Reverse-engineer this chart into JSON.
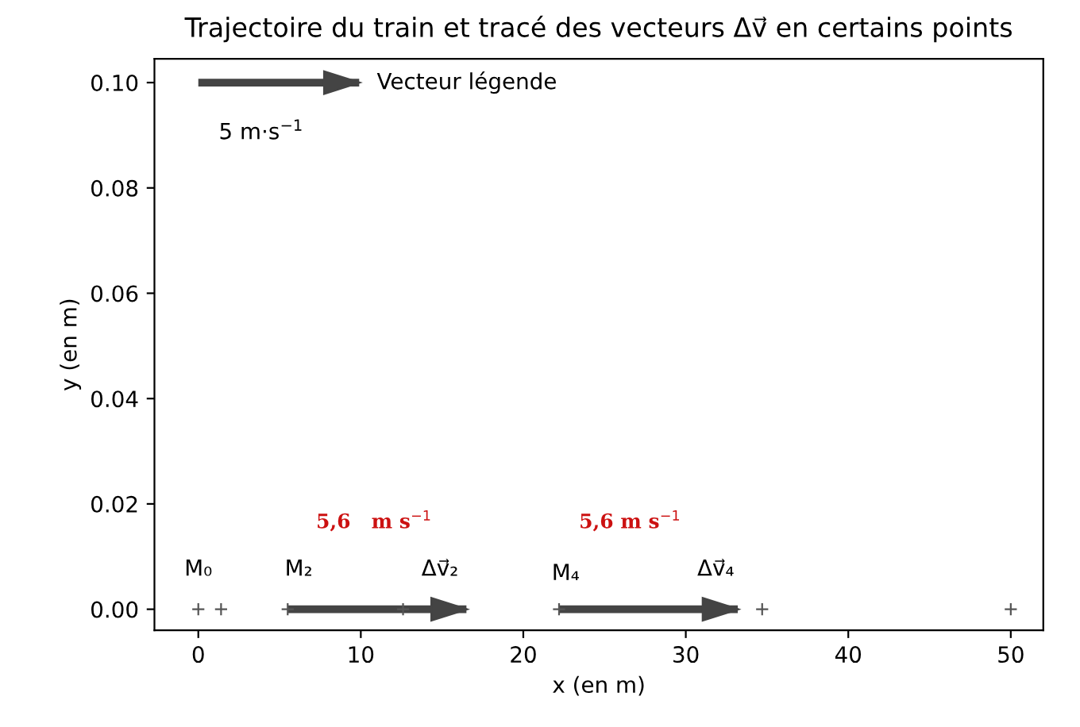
{
  "chart_data": {
    "type": "scatter",
    "title": "Trajectoire du train et tracé des vecteurs Δv⃗ en certains points",
    "xlabel": "x (en m)",
    "ylabel": "y (en m)",
    "series": [
      {
        "color": "#555555",
        "marker": "cross",
        "x": [
          0,
          1.4,
          5.5,
          12.6,
          22.2,
          34.7,
          50
        ],
        "values": [
          0,
          0,
          0,
          0,
          0,
          0,
          0
        ]
      },
      {
        "type": "line",
        "color": "#444444",
        "x": [
          5.5,
          16.5
        ],
        "values": [
          0,
          0
        ]
      },
      {
        "type": "line",
        "color": "#444444",
        "x": [
          22.2,
          33.2
        ],
        "values": [
          0,
          0
        ]
      },
      {
        "type": "line",
        "color": "#444444",
        "x": [
          0,
          9.9
        ],
        "values": [
          0.1,
          0.1
        ]
      }
    ],
    "annotations": [
      {
        "text": "M₀",
        "x": 0,
        "y": 0
      },
      {
        "text": "M₂",
        "x": 5.5,
        "y": 0
      },
      {
        "text": "Δv⃗₂",
        "x": 16.5,
        "y": 0
      },
      {
        "text": "M₄",
        "x": 22.2,
        "y": 0
      },
      {
        "text": "Δv⃗₄",
        "x": 33.2,
        "y": 0
      },
      "5,6   m s$^{−1}$",
      "5,6 m s$^{−1}$",
      "5 m·s$^{−1}$",
      {
        "text": "Vecteur légende",
        "x": 9.9,
        "y": 0.1
      }
    ],
    "xlim": [
      -2.7,
      52
    ],
    "ylim": [
      -0.004,
      0.1045
    ],
    "xticks": [
      0,
      10,
      20,
      30,
      40,
      50
    ],
    "yticks": [
      {
        "value": 0,
        "label": "0.00"
      },
      {
        "value": 0.02,
        "label": "0.02"
      },
      {
        "value": 0.04,
        "label": "0.04"
      },
      {
        "value": 0.06,
        "label": "0.06"
      },
      {
        "value": 0.08,
        "label": "0.08"
      },
      {
        "value": 0.1,
        "label": "0.10"
      }
    ],
    "grid": false,
    "legend": false
  }
}
